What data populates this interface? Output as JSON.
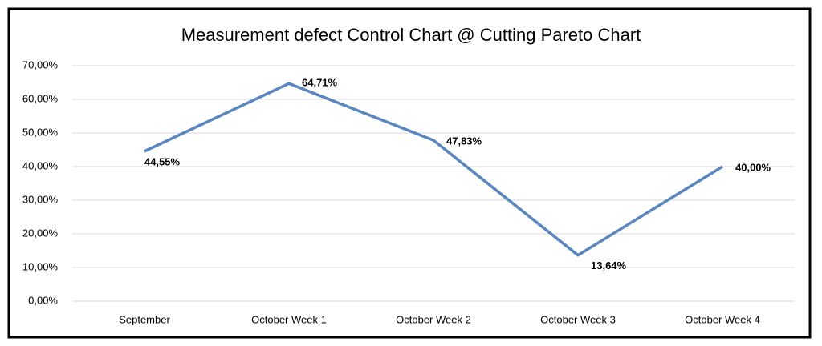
{
  "chart_data": {
    "type": "line",
    "title": "Measurement defect Control Chart @ Cutting Pareto Chart",
    "categories": [
      "September",
      "October Week 1",
      "October Week 2",
      "October Week 3",
      "October Week 4"
    ],
    "series": [
      {
        "color": "#5a86bf",
        "values": [
          44.55,
          64.71,
          47.83,
          13.64,
          40.0
        ],
        "value_labels": [
          "44,55%",
          "64,71%",
          "47,83%",
          "13,64%",
          "40,00%"
        ]
      }
    ],
    "ylim": [
      0,
      70
    ],
    "yticks": [
      {
        "value": 0,
        "label": "0,00%"
      },
      {
        "value": 10,
        "label": "10,00%"
      },
      {
        "value": 20,
        "label": "20,00%"
      },
      {
        "value": 30,
        "label": "30,00%"
      },
      {
        "value": 40,
        "label": "40,00%"
      },
      {
        "value": 50,
        "label": "50,00%"
      },
      {
        "value": 60,
        "label": "60,00%"
      },
      {
        "value": 70,
        "label": "70,00%"
      }
    ],
    "grid": true
  }
}
